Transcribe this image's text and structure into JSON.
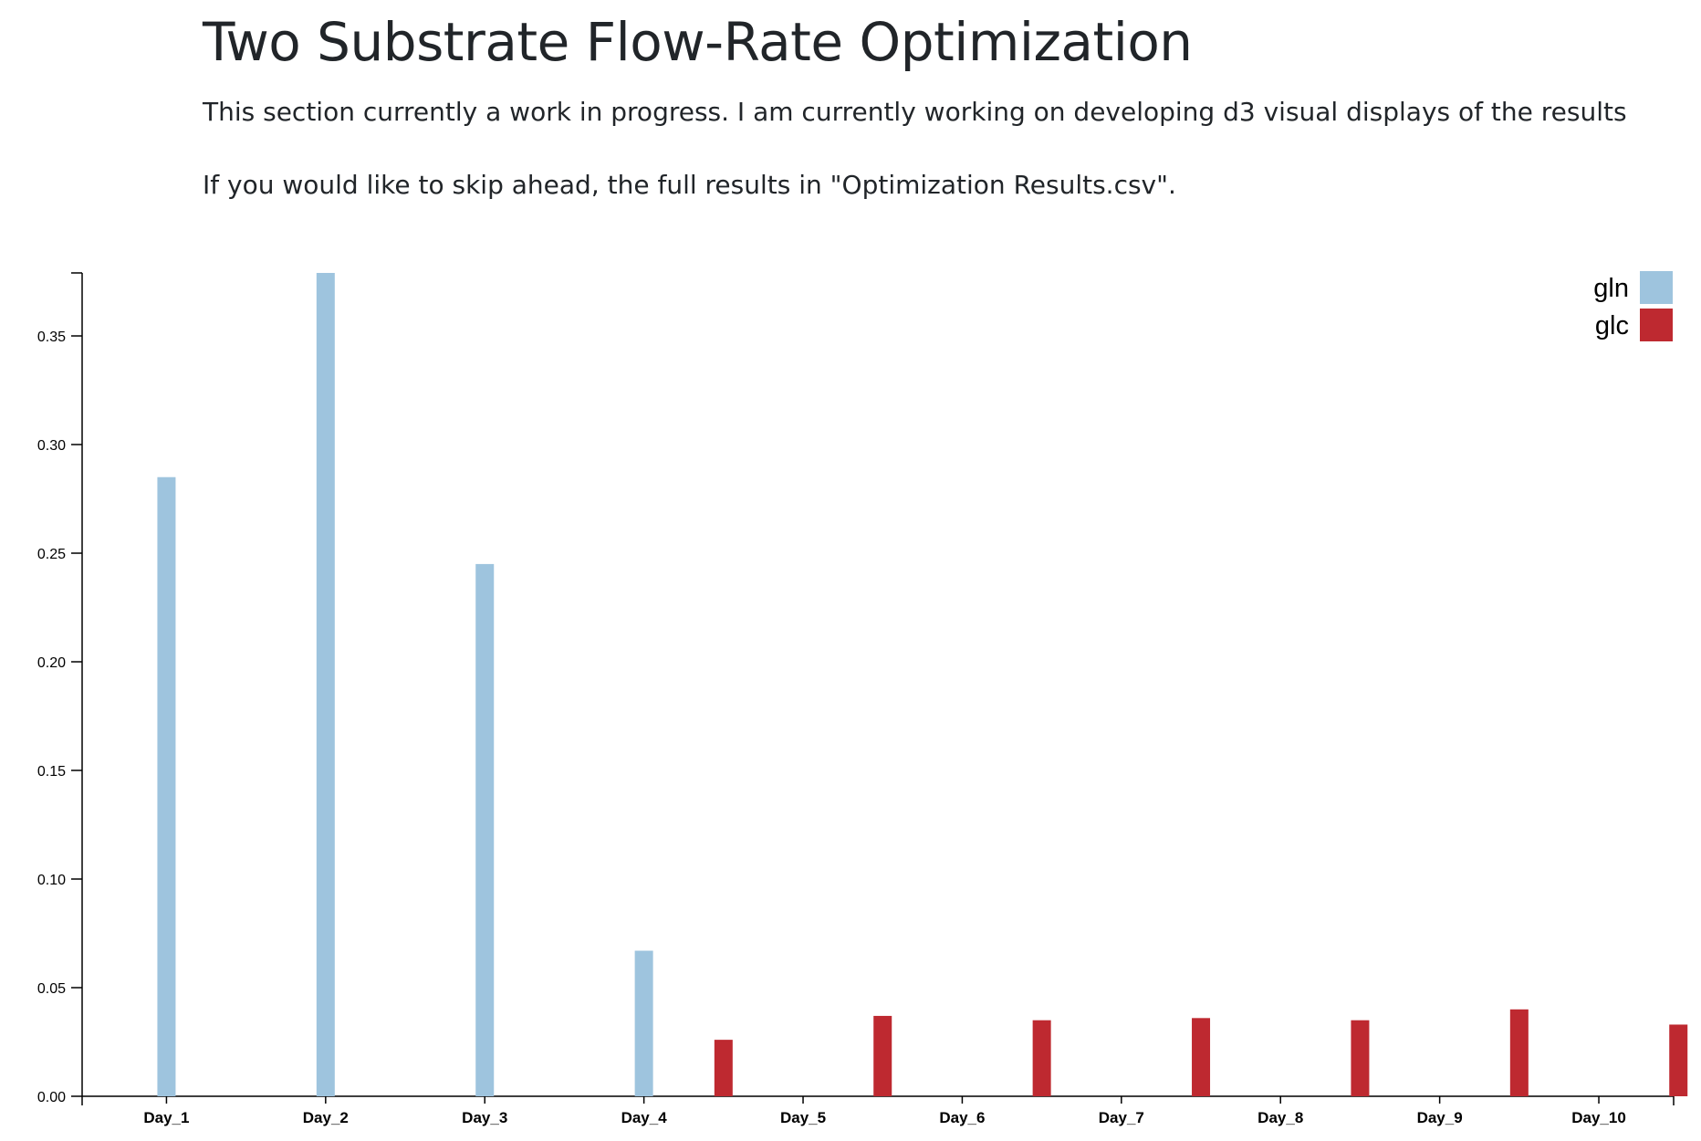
{
  "page": {
    "title": "Two Substrate Flow-Rate Optimization",
    "intro": "This section currently a work in progress. I am currently working on developing d3 visual displays of the results",
    "skip_note": "If you would like to skip ahead, the full results in \"Optimization Results.csv\"."
  },
  "chart_data": {
    "type": "bar",
    "categories": [
      "Day_1",
      "Day_2",
      "Day_3",
      "Day_4",
      "Day_5",
      "Day_6",
      "Day_7",
      "Day_8",
      "Day_9",
      "Day_10"
    ],
    "series": [
      {
        "name": "gln",
        "color": "#9ec4de",
        "values": [
          0.285,
          0.379,
          0.245,
          0.067,
          0,
          0,
          0,
          0,
          0,
          0
        ]
      },
      {
        "name": "glc",
        "color": "#be2930",
        "values": [
          0,
          0,
          0,
          0.026,
          0.037,
          0.035,
          0.036,
          0.035,
          0.04,
          0.033
        ]
      }
    ],
    "yticks": [
      "0.00",
      "0.05",
      "0.10",
      "0.15",
      "0.20",
      "0.25",
      "0.30",
      "0.35"
    ],
    "ylim": [
      0,
      0.379
    ],
    "legend_position": "top-right",
    "grid": false
  }
}
